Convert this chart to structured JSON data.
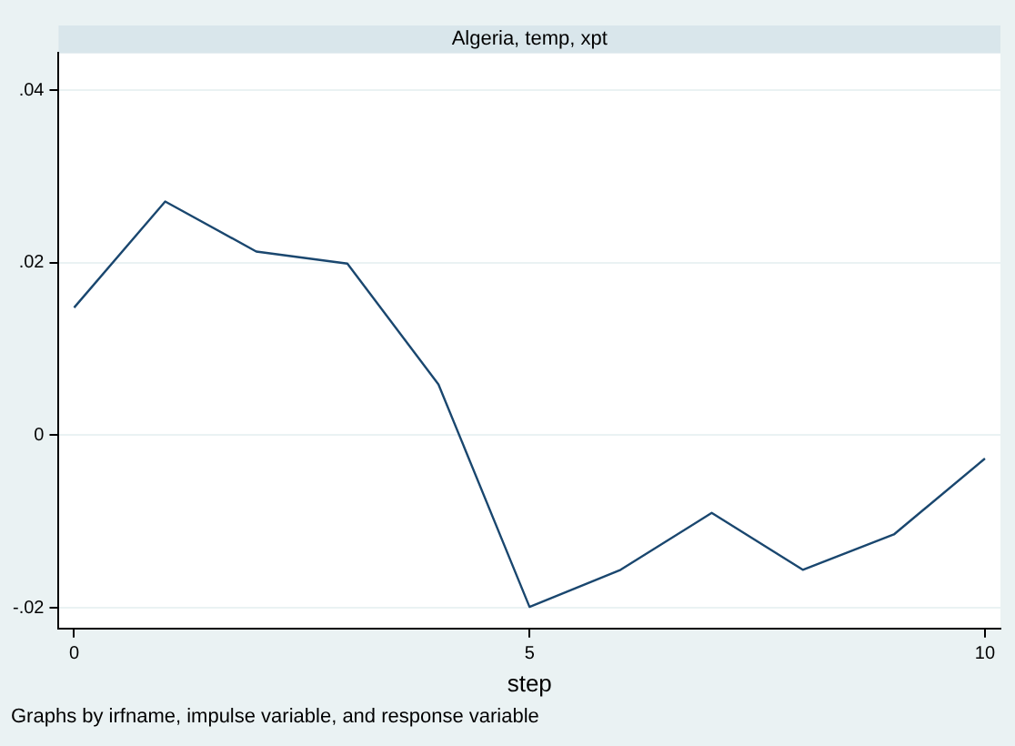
{
  "chart_data": {
    "type": "line",
    "title": "Algeria, temp, xpt",
    "xlabel": "step",
    "annotations": [
      "Graphs by irfname, impulse variable, and response variable"
    ],
    "x": [
      0,
      1,
      2,
      3,
      4,
      5,
      6,
      7,
      8,
      9,
      10
    ],
    "series": [
      {
        "color": "#1a476f",
        "values": [
          0.0148,
          0.0271,
          0.0213,
          0.0199,
          0.0059,
          -0.0199,
          -0.0156,
          -0.009,
          -0.0156,
          -0.0115,
          -0.0027
        ]
      }
    ],
    "xlim": [
      -0.17,
      10.17
    ],
    "xticks": [
      0,
      5,
      10
    ],
    "ylim": [
      -0.0224,
      0.0443
    ],
    "yticks": [
      {
        "value": -0.02,
        "label": "-.02"
      },
      {
        "value": 0,
        "label": "0"
      },
      {
        "value": 0.02,
        "label": ".02"
      },
      {
        "value": 0.04,
        "label": ".04"
      }
    ],
    "grid": "y",
    "marker": "none",
    "line_style": "solid"
  }
}
